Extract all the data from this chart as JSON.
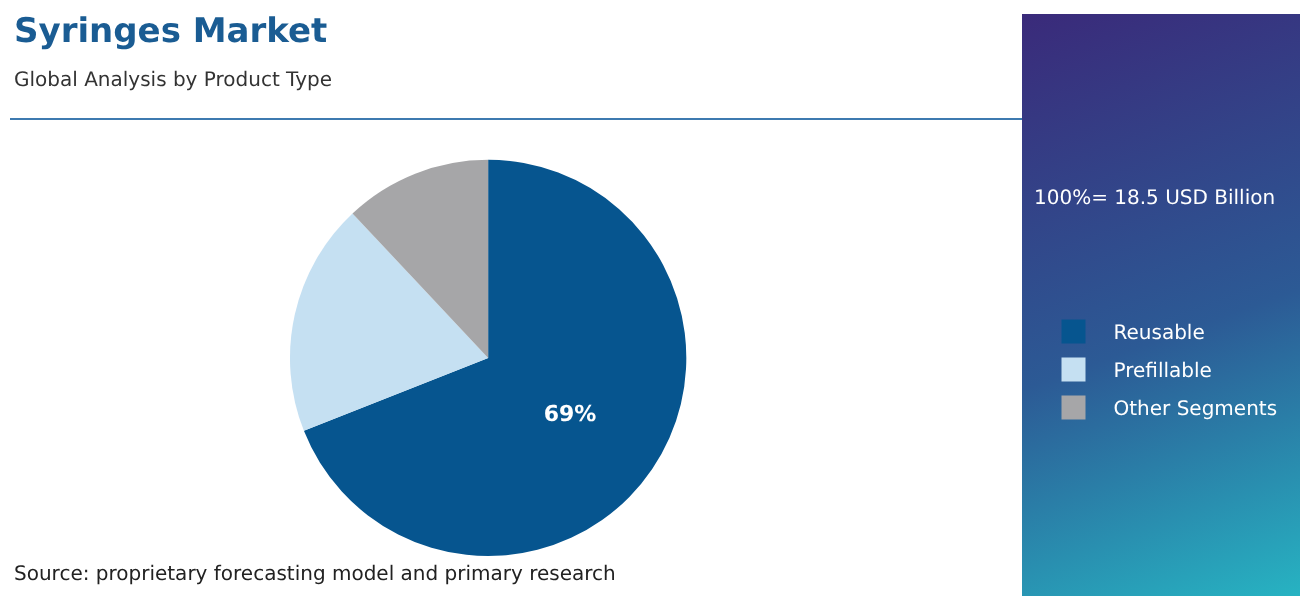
{
  "chart_data": {
    "type": "pie",
    "title": "Syringes Market",
    "subtitle": "Global Analysis by Product Type",
    "categories": [
      "Reusable",
      "Prefillable",
      "Other Segments"
    ],
    "values": [
      69,
      19,
      12
    ],
    "colors": [
      "#06558f",
      "#c5e0f2",
      "#a6a6a8"
    ],
    "value_labels": [
      "69%",
      null,
      null
    ],
    "legend": "right",
    "annotations": [
      "100%= 18.5 USD Billion",
      "Source: proprietary forecasting model and primary research"
    ]
  }
}
